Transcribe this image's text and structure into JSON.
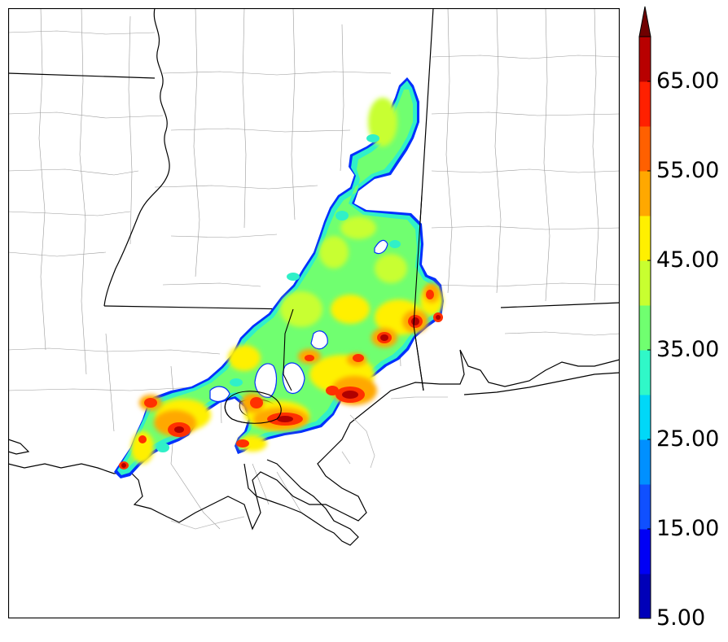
{
  "colorbar": {
    "tick_labels": [
      "5.00",
      "15.00",
      "25.00",
      "35.00",
      "45.00",
      "55.00",
      "65.00"
    ],
    "levels": [
      5,
      10,
      15,
      20,
      25,
      30,
      35,
      40,
      45,
      50,
      55,
      60,
      65,
      70
    ],
    "colors": [
      "#0000b8",
      "#0000f5",
      "#1050ff",
      "#0090ff",
      "#00d8f8",
      "#30f8c8",
      "#70ff70",
      "#c8ff30",
      "#fff000",
      "#ffa800",
      "#ff6000",
      "#ff2000",
      "#b80000",
      "#700000"
    ],
    "extend": "max"
  },
  "map": {
    "fill_colors": {
      "cyan": "#2ef0d0",
      "green": "#70ff70",
      "yellow_green": "#c8ff30",
      "yellow": "#fff000",
      "orange": "#ffa800",
      "red_orange": "#ff5000",
      "red": "#e80000",
      "dark_red": "#a00000",
      "edge": "#0030ff"
    },
    "line_colors": {
      "state_border": "#000000",
      "county_border": "#9a9a9a"
    }
  }
}
